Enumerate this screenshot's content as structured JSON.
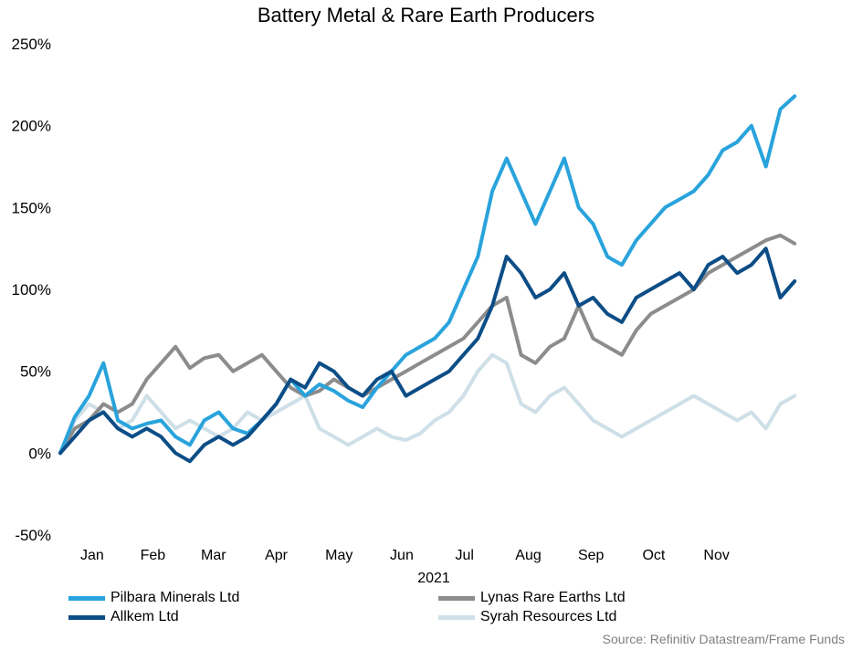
{
  "chart_data": {
    "type": "line",
    "title": "Battery Metal & Rare Earth Producers",
    "xlabel": "2021",
    "ylabel": "",
    "ylim": [
      -50,
      250
    ],
    "yticks": [
      "-50%",
      "0%",
      "50%",
      "100%",
      "150%",
      "200%",
      "250%"
    ],
    "ytick_values": [
      -50,
      0,
      50,
      100,
      150,
      200,
      250
    ],
    "xtick_labels": [
      "Jan",
      "Feb",
      "Mar",
      "Apr",
      "May",
      "Jun",
      "Jul",
      "Aug",
      "Sep",
      "Oct",
      "Nov"
    ],
    "x_months": [
      "2021-01",
      "2021-02",
      "2021-03",
      "2021-04",
      "2021-05",
      "2021-06",
      "2021-07",
      "2021-08",
      "2021-09",
      "2021-10",
      "2021-11",
      "2021-12"
    ],
    "x_dates": [
      "2021-01-01",
      "2021-01-08",
      "2021-01-15",
      "2021-01-22",
      "2021-01-29",
      "2021-02-05",
      "2021-02-12",
      "2021-02-19",
      "2021-02-26",
      "2021-03-05",
      "2021-03-12",
      "2021-03-19",
      "2021-03-26",
      "2021-04-02",
      "2021-04-09",
      "2021-04-16",
      "2021-04-23",
      "2021-04-30",
      "2021-05-07",
      "2021-05-14",
      "2021-05-21",
      "2021-05-28",
      "2021-06-04",
      "2021-06-11",
      "2021-06-18",
      "2021-06-25",
      "2021-07-02",
      "2021-07-09",
      "2021-07-16",
      "2021-07-23",
      "2021-07-30",
      "2021-08-06",
      "2021-08-13",
      "2021-08-20",
      "2021-08-27",
      "2021-09-03",
      "2021-09-10",
      "2021-09-17",
      "2021-09-24",
      "2021-10-01",
      "2021-10-08",
      "2021-10-15",
      "2021-10-22",
      "2021-10-29",
      "2021-11-05",
      "2021-11-12",
      "2021-11-19",
      "2021-11-26",
      "2021-12-03",
      "2021-12-10",
      "2021-12-17",
      "2021-12-24"
    ],
    "series": [
      {
        "name": "Pilbara Minerals Ltd",
        "color": "#29a3dc",
        "values": [
          0,
          22,
          35,
          55,
          20,
          15,
          18,
          20,
          10,
          5,
          20,
          25,
          15,
          12,
          20,
          30,
          45,
          35,
          42,
          38,
          32,
          28,
          40,
          50,
          60,
          65,
          70,
          80,
          100,
          120,
          160,
          180,
          160,
          140,
          160,
          180,
          150,
          140,
          120,
          115,
          130,
          140,
          150,
          155,
          160,
          170,
          185,
          190,
          200,
          175,
          210,
          218
        ]
      },
      {
        "name": "Lynas Rare Earths Ltd",
        "color": "#8c8c8c",
        "values": [
          0,
          15,
          20,
          30,
          25,
          30,
          45,
          55,
          65,
          52,
          58,
          60,
          50,
          55,
          60,
          50,
          40,
          35,
          38,
          45,
          40,
          35,
          40,
          45,
          50,
          55,
          60,
          65,
          70,
          80,
          90,
          95,
          60,
          55,
          65,
          70,
          90,
          70,
          65,
          60,
          75,
          85,
          90,
          95,
          100,
          110,
          115,
          120,
          125,
          130,
          133,
          128
        ]
      },
      {
        "name": "Allkem Ltd",
        "color": "#0c4d86",
        "values": [
          0,
          10,
          20,
          25,
          15,
          10,
          15,
          10,
          0,
          -5,
          5,
          10,
          5,
          10,
          20,
          30,
          45,
          40,
          55,
          50,
          40,
          35,
          45,
          50,
          35,
          40,
          45,
          50,
          60,
          70,
          90,
          120,
          110,
          95,
          100,
          110,
          90,
          95,
          85,
          80,
          95,
          100,
          105,
          110,
          100,
          115,
          120,
          110,
          115,
          125,
          95,
          105
        ]
      },
      {
        "name": "Syrah Resources Ltd",
        "color": "#cfdfe8",
        "values": [
          0,
          20,
          30,
          25,
          15,
          20,
          35,
          25,
          15,
          20,
          15,
          10,
          15,
          25,
          20,
          25,
          30,
          35,
          15,
          10,
          5,
          10,
          15,
          10,
          8,
          12,
          20,
          25,
          35,
          50,
          60,
          55,
          30,
          25,
          35,
          40,
          30,
          20,
          15,
          10,
          15,
          20,
          25,
          30,
          35,
          30,
          25,
          20,
          25,
          15,
          30,
          35
        ]
      }
    ],
    "legend": [
      {
        "label": "Pilbara Minerals Ltd",
        "color": "#29a3dc"
      },
      {
        "label": "Lynas Rare Earths Ltd",
        "color": "#8c8c8c"
      },
      {
        "label": "Allkem Ltd",
        "color": "#0c4d86"
      },
      {
        "label": "Syrah Resources Ltd",
        "color": "#cfdfe8"
      }
    ],
    "legend_position": "bottom",
    "grid": false,
    "source": "Source: Refinitiv Datastream/Frame Funds"
  }
}
